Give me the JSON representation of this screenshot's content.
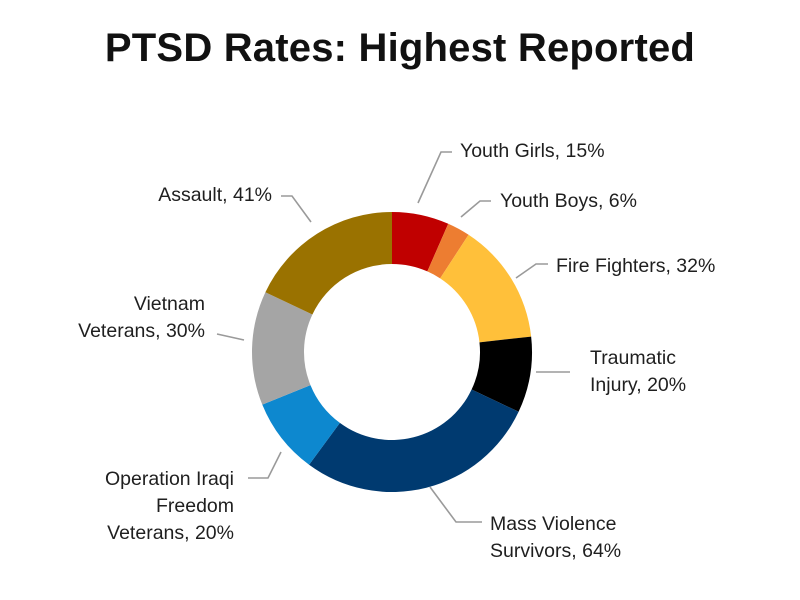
{
  "chart_data": {
    "type": "pie",
    "style": "donut",
    "title": "PTSD Rates: Highest Reported",
    "slices": [
      {
        "name": "Youth Girls",
        "value": 15,
        "color": "#C00000",
        "label_lines": [
          "Youth Girls, 15%"
        ]
      },
      {
        "name": "Youth Boys",
        "value": 6,
        "color": "#ED7D31",
        "label_lines": [
          "Youth Boys, 6%"
        ]
      },
      {
        "name": "Fire Fighters",
        "value": 32,
        "color": "#FFC03A",
        "label_lines": [
          "Fire Fighters, 32%"
        ]
      },
      {
        "name": "Traumatic Injury",
        "value": 20,
        "color": "#000000",
        "label_lines": [
          "Traumatic",
          "Injury, 20%"
        ]
      },
      {
        "name": "Mass Violence Survivors",
        "value": 64,
        "color": "#003A70",
        "label_lines": [
          "Mass Violence",
          "Survivors, 64%"
        ]
      },
      {
        "name": "Operation Iraqi Freedom Veterans",
        "value": 20,
        "color": "#0D88CF",
        "label_lines": [
          "Operation Iraqi",
          "Freedom",
          "Veterans, 20%"
        ]
      },
      {
        "name": "Vietnam Veterans",
        "value": 30,
        "color": "#A5A5A5",
        "label_lines": [
          "Vietnam",
          "Veterans, 30%"
        ]
      },
      {
        "name": "Assault",
        "value": 41,
        "color": "#9A7200",
        "label_lines": [
          "Assault, 41%"
        ]
      }
    ]
  }
}
